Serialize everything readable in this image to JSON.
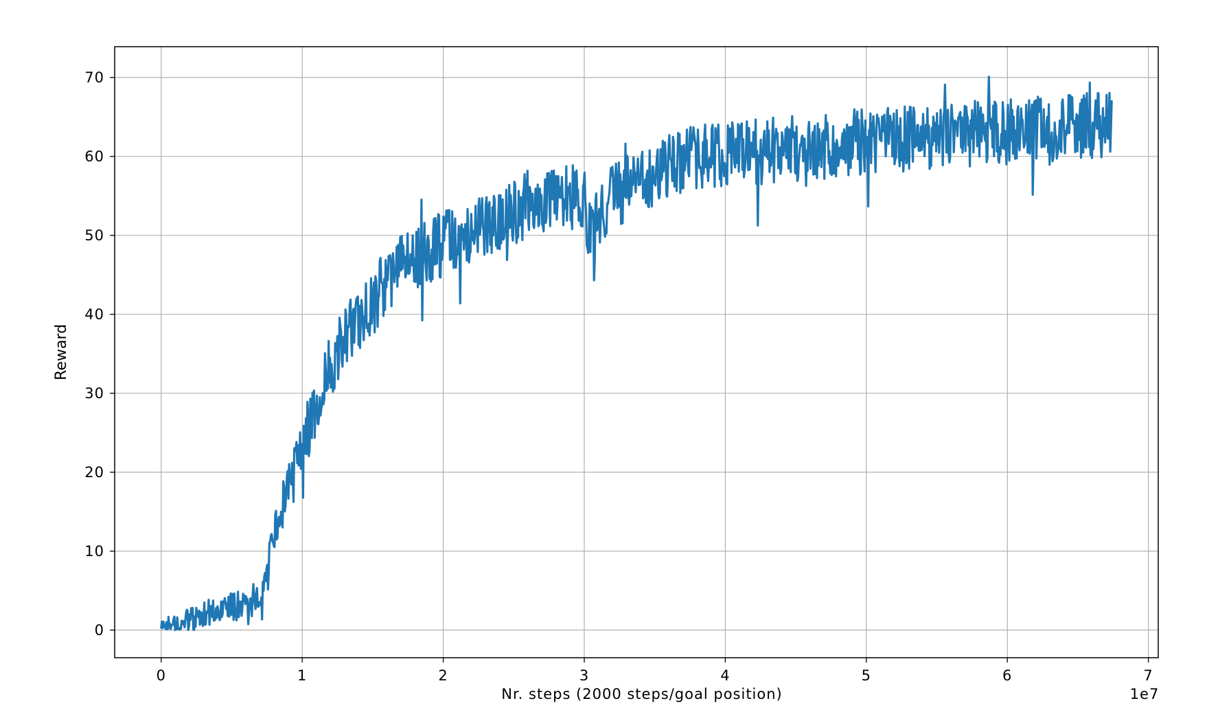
{
  "chart_data": {
    "type": "line",
    "title": "",
    "xlabel": "Nr. steps (2000 steps/goal position)",
    "ylabel": "Reward",
    "x_offset_label": "1e7",
    "xlim": [
      -0.33,
      7.07
    ],
    "ylim": [
      -3.5,
      73.9
    ],
    "x_ticks": [
      0,
      1,
      2,
      3,
      4,
      5,
      6,
      7
    ],
    "x_tick_labels": [
      "0",
      "1",
      "2",
      "3",
      "4",
      "5",
      "6",
      "7"
    ],
    "y_ticks": [
      0,
      10,
      20,
      30,
      40,
      50,
      60,
      70
    ],
    "y_tick_labels": [
      "0",
      "10",
      "20",
      "30",
      "40",
      "50",
      "60",
      "70"
    ],
    "grid": true,
    "legend": "none",
    "series_color": "#1f77b4",
    "series": [
      {
        "x": [
          0.0,
          0.05,
          0.1,
          0.15,
          0.2,
          0.25,
          0.3,
          0.35,
          0.4,
          0.45,
          0.5,
          0.55,
          0.6,
          0.65,
          0.7,
          0.75,
          0.8,
          0.85,
          0.9,
          0.95,
          1.0,
          1.05,
          1.1,
          1.15,
          1.2,
          1.25,
          1.3,
          1.35,
          1.4,
          1.45,
          1.5,
          1.55,
          1.6,
          1.65,
          1.7,
          1.75,
          1.8,
          1.85,
          1.9,
          1.95,
          2.0,
          2.1,
          2.2,
          2.3,
          2.4,
          2.5,
          2.6,
          2.7,
          2.8,
          2.9,
          3.0,
          3.05,
          3.1,
          3.2,
          3.3,
          3.4,
          3.5,
          3.6,
          3.7,
          3.8,
          3.9,
          4.0,
          4.2,
          4.4,
          4.6,
          4.8,
          5.0,
          5.2,
          5.4,
          5.6,
          5.8,
          6.0,
          6.2,
          6.4,
          6.6,
          6.7,
          6.74
        ],
        "y": [
          0.2,
          0.6,
          0.8,
          1.0,
          1.2,
          1.6,
          2.0,
          2.3,
          2.6,
          2.8,
          3.0,
          3.2,
          3.4,
          3.7,
          4.5,
          6.5,
          11,
          15,
          18,
          21,
          23,
          26,
          29,
          31,
          33,
          35,
          37,
          38,
          39,
          40,
          41.5,
          43,
          44,
          45,
          46,
          46.5,
          47,
          47.5,
          48,
          48.5,
          49,
          49.5,
          50.5,
          51,
          52,
          53,
          54,
          54.5,
          55,
          55,
          54,
          50,
          52,
          55,
          56,
          57,
          58,
          59,
          59.5,
          60,
          60,
          60.5,
          60.5,
          61,
          61,
          61.5,
          62,
          62,
          62.5,
          62.5,
          63,
          63,
          63.5,
          63.5,
          64,
          64,
          64
        ]
      }
    ]
  }
}
